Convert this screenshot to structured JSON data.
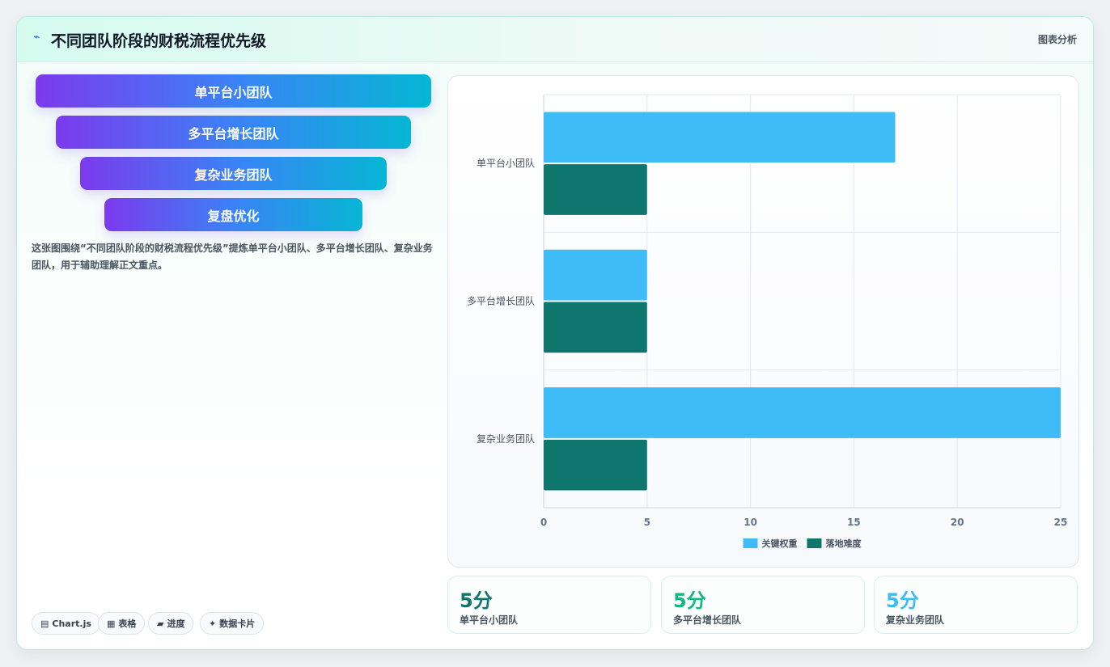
{
  "header": {
    "icon": "chart-line-icon",
    "title": "不同团队阶段的财税流程优先级",
    "tag": "图表分析"
  },
  "stages": [
    {
      "label": "单平台小团队"
    },
    {
      "label": "多平台增长团队"
    },
    {
      "label": "复杂业务团队"
    },
    {
      "label": "复盘优化"
    }
  ],
  "description": "这张图围绕“不同团队阶段的财税流程优先级”提炼单平台小团队、多平台增长团队、复杂业务团队，用于辅助理解正文重点。",
  "chips": [
    {
      "icon": "chart-icon",
      "glyph": "▤",
      "label": "Chart.js"
    },
    {
      "icon": "table-icon",
      "glyph": "▦",
      "label": "表格"
    },
    {
      "icon": "progress-icon",
      "glyph": "▰",
      "label": "进度"
    },
    {
      "icon": "sparkle-icon",
      "glyph": "✦",
      "label": "数据卡片"
    }
  ],
  "chart_data": {
    "type": "bar",
    "orientation": "horizontal",
    "categories": [
      "单平台小团队",
      "多平台增长团队",
      "复杂业务团队"
    ],
    "series": [
      {
        "name": "关键权重",
        "values": [
          17,
          5,
          25
        ],
        "color": "#3dbcf8"
      },
      {
        "name": "落地难度",
        "values": [
          5,
          5,
          5
        ],
        "color": "#0f766e"
      }
    ],
    "xlim": [
      0,
      25
    ],
    "xticks": [
      0,
      5,
      10,
      15,
      20,
      25
    ],
    "grid": true,
    "legend_position": "bottom"
  },
  "stats": [
    {
      "value": "5分",
      "label": "单平台小团队",
      "color": "#0f766e"
    },
    {
      "value": "5分",
      "label": "多平台增长团队",
      "color": "#10b981"
    },
    {
      "value": "5分",
      "label": "复杂业务团队",
      "color": "#38bdf8"
    }
  ]
}
